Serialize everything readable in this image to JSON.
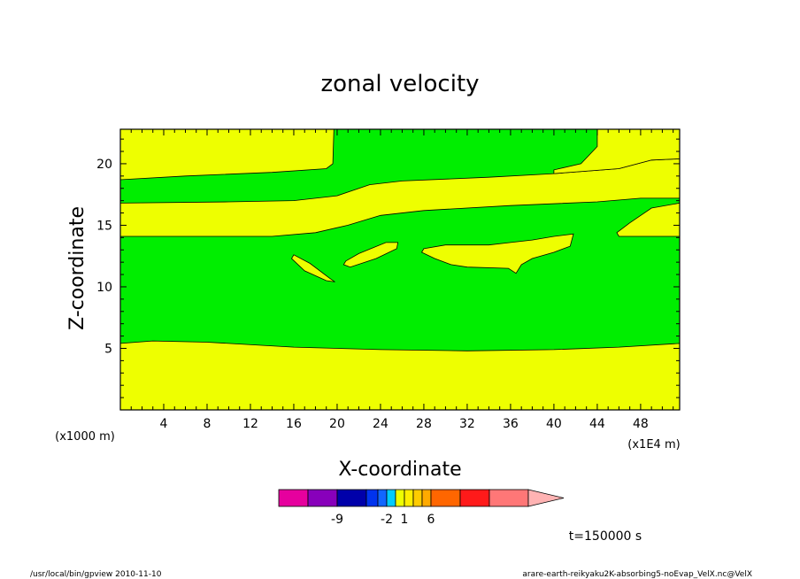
{
  "chart_data": {
    "type": "heatmap",
    "title": "zonal velocity",
    "xlabel": "X-coordinate",
    "ylabel": "Z-coordinate",
    "x_unit_note": "(x1E4 m)",
    "y_unit_note": "(x1000 m)",
    "xlim": [
      0,
      51.6
    ],
    "ylim": [
      0,
      22.8
    ],
    "x_ticks": [
      4,
      8,
      12,
      16,
      20,
      24,
      28,
      32,
      36,
      40,
      44,
      48
    ],
    "y_ticks": [
      5,
      10,
      15,
      20
    ],
    "regions": [
      {
        "level": "-2 to 1",
        "color": "#00ee00",
        "description": "background"
      },
      {
        "level": "1 to 2",
        "color": "#eeff00",
        "boundaries": {
          "bottom_band_top": [
            [
              0,
              5.4
            ],
            [
              3,
              5.6
            ],
            [
              8,
              5.5
            ],
            [
              16,
              5.1
            ],
            [
              24,
              4.9
            ],
            [
              32,
              4.8
            ],
            [
              40,
              4.9
            ],
            [
              46,
              5.1
            ],
            [
              51.6,
              5.4
            ]
          ],
          "mid_band_bottom": [
            [
              0,
              14.1
            ],
            [
              8,
              14.1
            ],
            [
              14,
              14.1
            ],
            [
              18,
              14.4
            ],
            [
              21,
              15.0
            ],
            [
              24,
              15.8
            ],
            [
              28,
              16.2
            ],
            [
              36,
              16.6
            ],
            [
              44,
              16.9
            ],
            [
              48,
              17.2
            ],
            [
              51.6,
              17.2
            ]
          ],
          "mid_band_top": [
            [
              0,
              16.8
            ],
            [
              10,
              16.9
            ],
            [
              16,
              17.0
            ],
            [
              20,
              17.4
            ],
            [
              23,
              18.3
            ],
            [
              26,
              18.6
            ],
            [
              34,
              18.9
            ],
            [
              40,
              19.2
            ],
            [
              46,
              19.6
            ],
            [
              49,
              20.3
            ],
            [
              51.6,
              20.4
            ]
          ],
          "upper_left_bottom": [
            [
              0,
              18.7
            ],
            [
              6,
              19.0
            ],
            [
              14,
              19.3
            ],
            [
              19,
              19.6
            ],
            [
              19.6,
              20.0
            ],
            [
              19.7,
              22.8
            ]
          ],
          "upper_right_left": [
            [
              44,
              22.8
            ],
            [
              44,
              21.4
            ],
            [
              42.5,
              20.0
            ],
            [
              40,
              19.5
            ]
          ]
        },
        "patches": [
          [
            [
              16,
              12.6
            ],
            [
              17.5,
              11.9
            ],
            [
              19.3,
              10.7
            ],
            [
              19.8,
              10.4
            ],
            [
              19,
              10.5
            ],
            [
              17,
              11.3
            ],
            [
              15.8,
              12.3
            ]
          ],
          [
            [
              20.8,
              12.1
            ],
            [
              22,
              12.7
            ],
            [
              24.5,
              13.6
            ],
            [
              25.6,
              13.6
            ],
            [
              25.5,
              13.1
            ],
            [
              23.6,
              12.3
            ],
            [
              21.2,
              11.6
            ],
            [
              20.6,
              11.8
            ]
          ],
          [
            [
              28,
              13.1
            ],
            [
              30,
              13.4
            ],
            [
              34,
              13.4
            ],
            [
              36,
              13.6
            ],
            [
              38,
              13.8
            ],
            [
              40,
              14.1
            ],
            [
              41.8,
              14.3
            ],
            [
              41.5,
              13.3
            ],
            [
              40,
              12.8
            ],
            [
              38,
              12.3
            ],
            [
              37,
              11.8
            ],
            [
              36.5,
              11.1
            ],
            [
              35.8,
              11.5
            ],
            [
              32,
              11.6
            ],
            [
              30.5,
              11.8
            ],
            [
              29,
              12.3
            ],
            [
              27.8,
              12.8
            ]
          ],
          [
            [
              45.8,
              14.4
            ],
            [
              47,
              15.2
            ],
            [
              49,
              16.4
            ],
            [
              51.6,
              16.8
            ],
            [
              51.6,
              14.1
            ],
            [
              46,
              14.1
            ]
          ]
        ]
      }
    ],
    "colorbar": {
      "colors": [
        "#e6009e",
        "#8800bb",
        "#0000aa",
        "#0033ee",
        "#1166ff",
        "#00ccff",
        "#eeff00",
        "#ffee00",
        "#ffcc00",
        "#ffaa00",
        "#ff6600",
        "#ff1a1a",
        "#ff7777",
        "#ffb3b3"
      ],
      "tick_labels": [
        "-9",
        "-2",
        "1",
        "6"
      ]
    },
    "time_label": "t=150000 s"
  },
  "footer": {
    "left": "/usr/local/bin/gpview  2010-11-10",
    "right": "arare-earth-reikyaku2K-absorbing5-noEvap_VelX.nc@VelX"
  }
}
